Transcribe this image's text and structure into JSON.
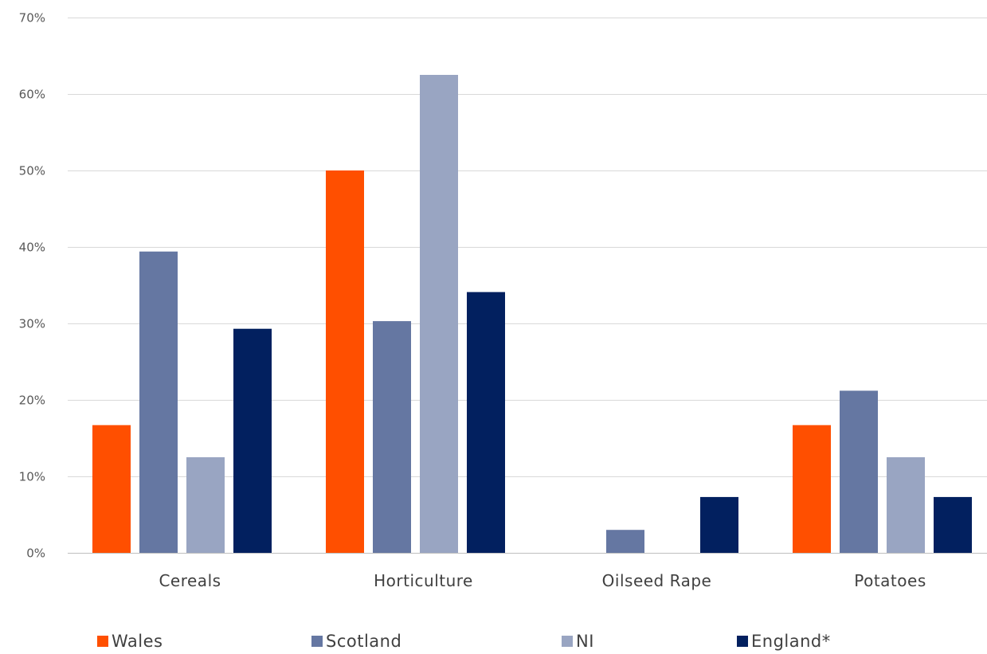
{
  "chart_data": {
    "type": "bar",
    "title": "",
    "xlabel": "",
    "ylabel": "",
    "ylim": [
      0,
      70
    ],
    "y_ticks": [
      0,
      10,
      20,
      30,
      40,
      50,
      60,
      70
    ],
    "y_tick_labels": [
      "0%",
      "10%",
      "20%",
      "30%",
      "40%",
      "50%",
      "60%",
      "70%"
    ],
    "grid": true,
    "legend_position": "bottom",
    "categories": [
      "Cereals",
      "Horticulture",
      "Oilseed Rape",
      "Potatoes"
    ],
    "series": [
      {
        "name": "Wales",
        "color": "#ff4f00",
        "values": [
          16.7,
          50,
          0,
          16.7
        ]
      },
      {
        "name": "Scotland",
        "color": "#6577a2",
        "values": [
          39.4,
          30.3,
          3.0,
          21.2
        ]
      },
      {
        "name": "NI",
        "color": "#99a5c2",
        "values": [
          12.5,
          62.5,
          0,
          12.5
        ]
      },
      {
        "name": "England*",
        "color": "#02205f",
        "values": [
          29.3,
          34.1,
          7.3,
          7.3
        ]
      }
    ]
  }
}
